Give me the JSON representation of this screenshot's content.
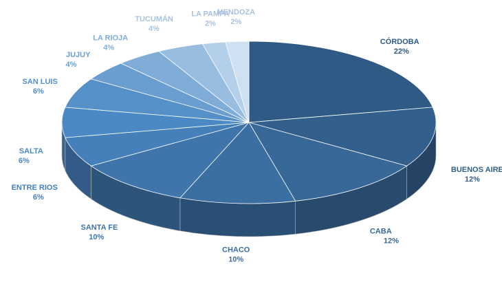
{
  "chart_data": {
    "type": "pie3d",
    "categories": [
      "CÓRDOBA",
      "BUENOS AIRES",
      "CABA",
      "CHACO",
      "SANTA FE",
      "ENTRE RIOS",
      "SALTA",
      "SAN LUIS",
      "JUJUY",
      "LA RIOJA",
      "TUCUMÁN",
      "LA PAMPA",
      "MENDOZA"
    ],
    "values": [
      22,
      12,
      12,
      10,
      10,
      6,
      6,
      6,
      4,
      4,
      4,
      2,
      2
    ],
    "value_labels": [
      "22%",
      "12%",
      "12%",
      "10%",
      "10%",
      "6%",
      "6%",
      "6%",
      "4%",
      "4%",
      "4%",
      "2%",
      "2%"
    ],
    "colors": [
      "#2f5a85",
      "#335f8c",
      "#386897",
      "#3b6ea1",
      "#3f75aa",
      "#4580bb",
      "#4a88c6",
      "#5590c9",
      "#6a9dd0",
      "#80acd8",
      "#98bde0",
      "#b3cfea",
      "#cfe0f2"
    ]
  }
}
